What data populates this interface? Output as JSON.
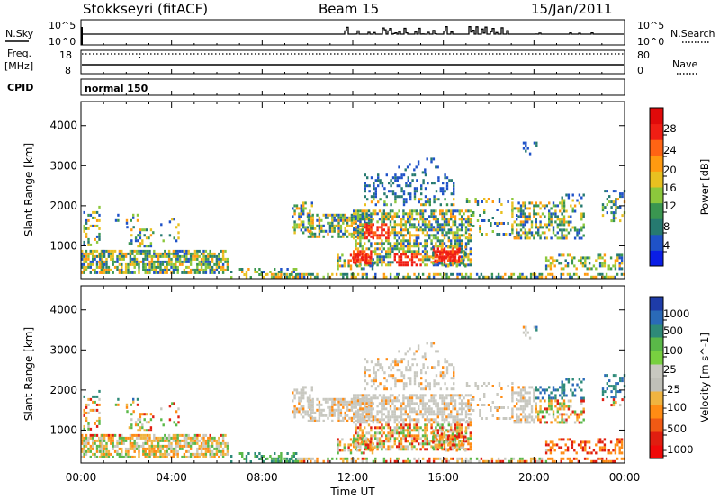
{
  "chart_data": {
    "type": "heatmap",
    "header": {
      "station": "Stokkseyri (fitACF)",
      "beam": "Beam 15",
      "date": "15/Jan/2011"
    },
    "x_axis": {
      "label": "Time UT",
      "ticks": [
        "00:00",
        "04:00",
        "08:00",
        "12:00",
        "16:00",
        "20:00",
        "00:00"
      ],
      "range_hours": [
        0,
        24
      ]
    },
    "aux_panels": {
      "nsky": {
        "left_label": "N.Sky",
        "right_label": "N.Search",
        "left_ticks": [
          "10^5",
          "10^0"
        ],
        "right_ticks": [
          "10^5",
          "10^0"
        ]
      },
      "freq": {
        "left_label_1": "Freq.",
        "left_label_2": "[MHz]",
        "right_label": "Nave",
        "left_ticks": [
          "18",
          "8"
        ],
        "right_ticks": [
          "80",
          "0"
        ]
      },
      "cpid": {
        "label": "CPID",
        "program": "normal 150"
      }
    },
    "panels": [
      {
        "name": "power",
        "ylabel": "Slant Range [km]",
        "ylim": [
          180,
          4600
        ],
        "yticks": [
          "1000",
          "2000",
          "3000",
          "4000"
        ],
        "colorbar": {
          "label": "Power [dB]",
          "ticks": [
            "4",
            "8",
            "12",
            "16",
            "20",
            "24",
            "28"
          ],
          "colors": [
            "#0a1ee6",
            "#1f52c8",
            "#267a70",
            "#3a9650",
            "#8cc83c",
            "#e8c020",
            "#ff9a10",
            "#ff6414",
            "#f01e14",
            "#e00a0a"
          ]
        }
      },
      {
        "name": "velocity",
        "ylabel": "Slant Range [km]",
        "ylim": [
          180,
          4600
        ],
        "yticks": [
          "1000",
          "2000",
          "3000",
          "4000"
        ],
        "colorbar": {
          "label": "Velocity [m s^-1]",
          "ticks": [
            "1000",
            "500",
            "100",
            "25",
            "-25",
            "-100",
            "-500",
            "-1000"
          ],
          "colors": [
            "#1e3ca8",
            "#2a6ab8",
            "#2e8a78",
            "#5ab848",
            "#78d040",
            "#c8c8c0",
            "#c0c0b8",
            "#f0b440",
            "#ff8c14",
            "#f05a14",
            "#e01e10",
            "#f00a0a"
          ]
        }
      }
    ]
  }
}
